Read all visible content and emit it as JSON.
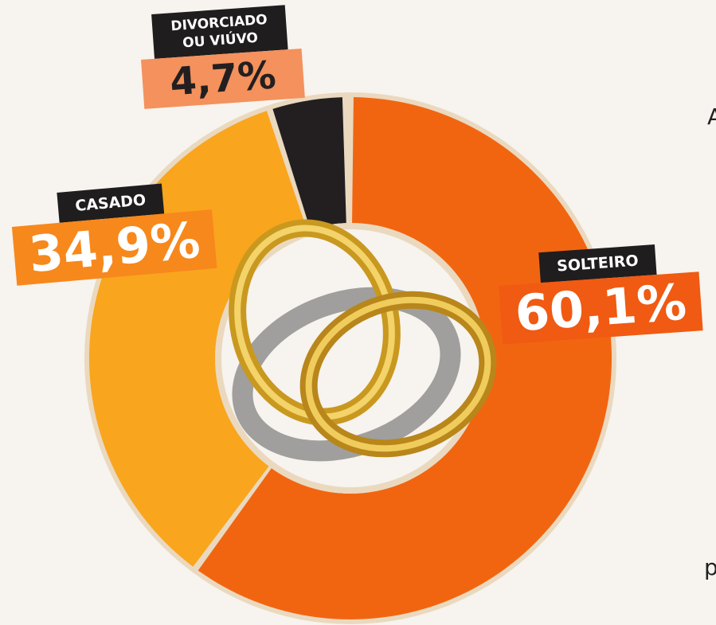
{
  "chart_data": {
    "type": "donut",
    "categories": [
      "SOLTEIRO",
      "CASADO",
      "DIVORCIADO OU VIÚVO"
    ],
    "values": [
      60.1,
      34.9,
      4.7
    ],
    "value_labels": [
      "60,1%",
      "34,9%",
      "4,7%"
    ],
    "colors": [
      "#f26510",
      "#f9a51e",
      "#231f20"
    ],
    "label_colors": [
      "#f05a12",
      "#f7881c",
      "#f4915c"
    ],
    "annotations": [
      "A",
      "p"
    ]
  }
}
